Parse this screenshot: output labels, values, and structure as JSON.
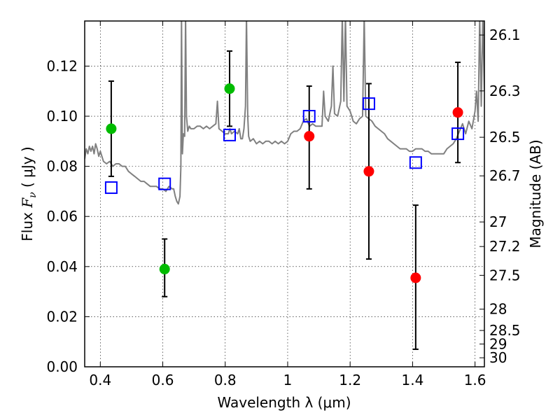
{
  "chart_data": {
    "type": "scatter",
    "title": "",
    "xlabel": "Wavelength  λ (μm)",
    "ylabel_left_prefix": "Flux  ",
    "ylabel_left_var": "F",
    "ylabel_left_sub": "ν",
    "ylabel_left_unit": "  ( μJy )",
    "ylabel_right": "Magnitude (AB)",
    "xlim": [
      0.35,
      1.63
    ],
    "ylim": [
      0.0,
      0.138
    ],
    "grid": true,
    "x_ticks": [
      0.4,
      0.6,
      0.8,
      1.0,
      1.2,
      1.4,
      1.6
    ],
    "x_tick_labels": [
      "0.4",
      "0.6",
      "0.8",
      "1",
      "1.2",
      "1.4",
      "1.6"
    ],
    "y_ticks": [
      0.0,
      0.02,
      0.04,
      0.06,
      0.08,
      0.1,
      0.12
    ],
    "y_tick_labels": [
      "0.00",
      "0.02",
      "0.04",
      "0.06",
      "0.08",
      "0.10",
      "0.12"
    ],
    "right_axis_ticks": [
      {
        "label": "26.1",
        "flux": 0.1324
      },
      {
        "label": "26.3",
        "flux": 0.1101
      },
      {
        "label": "26.5",
        "flux": 0.0916
      },
      {
        "label": "26.7",
        "flux": 0.0762
      },
      {
        "label": "27",
        "flux": 0.0578
      },
      {
        "label": "27.2",
        "flux": 0.048
      },
      {
        "label": "27.5",
        "flux": 0.0365
      },
      {
        "label": "28",
        "flux": 0.023
      },
      {
        "label": "28.5",
        "flux": 0.0145
      },
      {
        "label": "29",
        "flux": 0.0091
      },
      {
        "label": "30",
        "flux": 0.0036
      }
    ],
    "colors": {
      "spectrum": "#808080",
      "green_points": "#00bb00",
      "red_points": "#ff0000",
      "model_squares": "#0000ff",
      "errorbars": "#000000"
    },
    "series": [
      {
        "type": "scatter-errorbar",
        "marker": "green-circle",
        "points": [
          {
            "x": 0.435,
            "y": 0.095,
            "ylo": 0.076,
            "yhi": 0.114
          },
          {
            "x": 0.606,
            "y": 0.039,
            "ylo": 0.028,
            "yhi": 0.051
          },
          {
            "x": 0.814,
            "y": 0.111,
            "ylo": 0.096,
            "yhi": 0.126
          }
        ]
      },
      {
        "type": "scatter-errorbar",
        "marker": "red-circle",
        "points": [
          {
            "x": 1.069,
            "y": 0.092,
            "ylo": 0.071,
            "yhi": 0.112
          },
          {
            "x": 1.26,
            "y": 0.078,
            "ylo": 0.043,
            "yhi": 0.113
          },
          {
            "x": 1.41,
            "y": 0.0355,
            "ylo": 0.007,
            "yhi": 0.0645
          },
          {
            "x": 1.545,
            "y": 0.1015,
            "ylo": 0.0815,
            "yhi": 0.1215
          }
        ]
      },
      {
        "type": "scatter",
        "marker": "blue-open-square",
        "points": [
          {
            "x": 0.435,
            "y": 0.0715
          },
          {
            "x": 0.606,
            "y": 0.073
          },
          {
            "x": 0.814,
            "y": 0.0925
          },
          {
            "x": 1.069,
            "y": 0.1
          },
          {
            "x": 1.26,
            "y": 0.105
          },
          {
            "x": 1.41,
            "y": 0.0815
          },
          {
            "x": 1.545,
            "y": 0.093
          }
        ]
      },
      {
        "type": "line",
        "marker": "grey-spectrum",
        "points": [
          [
            0.35,
            0.083
          ],
          [
            0.355,
            0.087
          ],
          [
            0.36,
            0.085
          ],
          [
            0.365,
            0.088
          ],
          [
            0.37,
            0.086
          ],
          [
            0.375,
            0.088
          ],
          [
            0.38,
            0.085
          ],
          [
            0.385,
            0.089
          ],
          [
            0.39,
            0.087
          ],
          [
            0.395,
            0.084
          ],
          [
            0.4,
            0.086
          ],
          [
            0.41,
            0.082
          ],
          [
            0.42,
            0.081
          ],
          [
            0.43,
            0.082
          ],
          [
            0.44,
            0.08
          ],
          [
            0.45,
            0.081
          ],
          [
            0.46,
            0.081
          ],
          [
            0.47,
            0.08
          ],
          [
            0.48,
            0.08
          ],
          [
            0.49,
            0.078
          ],
          [
            0.5,
            0.077
          ],
          [
            0.51,
            0.076
          ],
          [
            0.52,
            0.075
          ],
          [
            0.53,
            0.074
          ],
          [
            0.54,
            0.074
          ],
          [
            0.55,
            0.073
          ],
          [
            0.56,
            0.072
          ],
          [
            0.57,
            0.072
          ],
          [
            0.58,
            0.072
          ],
          [
            0.59,
            0.071
          ],
          [
            0.6,
            0.071
          ],
          [
            0.61,
            0.07
          ],
          [
            0.62,
            0.072
          ],
          [
            0.63,
            0.071
          ],
          [
            0.635,
            0.071
          ],
          [
            0.64,
            0.068
          ],
          [
            0.645,
            0.066
          ],
          [
            0.65,
            0.065
          ],
          [
            0.655,
            0.068
          ],
          [
            0.658,
            0.08
          ],
          [
            0.66,
            0.14
          ],
          [
            0.663,
            0.085
          ],
          [
            0.666,
            0.093
          ],
          [
            0.67,
            0.092
          ],
          [
            0.673,
            0.14
          ],
          [
            0.676,
            0.1
          ],
          [
            0.68,
            0.094
          ],
          [
            0.685,
            0.096
          ],
          [
            0.69,
            0.095
          ],
          [
            0.7,
            0.095
          ],
          [
            0.71,
            0.096
          ],
          [
            0.72,
            0.096
          ],
          [
            0.73,
            0.095
          ],
          [
            0.74,
            0.096
          ],
          [
            0.75,
            0.095
          ],
          [
            0.76,
            0.096
          ],
          [
            0.77,
            0.097
          ],
          [
            0.775,
            0.106
          ],
          [
            0.78,
            0.095
          ],
          [
            0.79,
            0.094
          ],
          [
            0.8,
            0.093
          ],
          [
            0.81,
            0.093
          ],
          [
            0.815,
            0.095
          ],
          [
            0.82,
            0.093
          ],
          [
            0.83,
            0.094
          ],
          [
            0.84,
            0.093
          ],
          [
            0.845,
            0.095
          ],
          [
            0.85,
            0.091
          ],
          [
            0.855,
            0.091
          ],
          [
            0.86,
            0.095
          ],
          [
            0.865,
            0.104
          ],
          [
            0.868,
            0.14
          ],
          [
            0.872,
            0.1
          ],
          [
            0.875,
            0.092
          ],
          [
            0.88,
            0.09
          ],
          [
            0.89,
            0.091
          ],
          [
            0.9,
            0.089
          ],
          [
            0.91,
            0.09
          ],
          [
            0.92,
            0.089
          ],
          [
            0.93,
            0.09
          ],
          [
            0.94,
            0.09
          ],
          [
            0.95,
            0.089
          ],
          [
            0.96,
            0.09
          ],
          [
            0.97,
            0.089
          ],
          [
            0.98,
            0.09
          ],
          [
            0.99,
            0.089
          ],
          [
            1.0,
            0.09
          ],
          [
            1.01,
            0.093
          ],
          [
            1.02,
            0.094
          ],
          [
            1.03,
            0.094
          ],
          [
            1.04,
            0.095
          ],
          [
            1.05,
            0.098
          ],
          [
            1.06,
            0.099
          ],
          [
            1.07,
            0.096
          ],
          [
            1.08,
            0.097
          ],
          [
            1.09,
            0.096
          ],
          [
            1.1,
            0.096
          ],
          [
            1.11,
            0.096
          ],
          [
            1.115,
            0.11
          ],
          [
            1.12,
            0.1
          ],
          [
            1.13,
            0.098
          ],
          [
            1.14,
            0.104
          ],
          [
            1.145,
            0.12
          ],
          [
            1.15,
            0.101
          ],
          [
            1.16,
            0.1
          ],
          [
            1.17,
            0.106
          ],
          [
            1.175,
            0.14
          ],
          [
            1.18,
            0.106
          ],
          [
            1.185,
            0.14
          ],
          [
            1.19,
            0.104
          ],
          [
            1.2,
            0.102
          ],
          [
            1.21,
            0.098
          ],
          [
            1.22,
            0.097
          ],
          [
            1.23,
            0.099
          ],
          [
            1.24,
            0.1
          ],
          [
            1.245,
            0.14
          ],
          [
            1.25,
            0.1
          ],
          [
            1.26,
            0.099
          ],
          [
            1.27,
            0.098
          ],
          [
            1.28,
            0.096
          ],
          [
            1.29,
            0.095
          ],
          [
            1.3,
            0.094
          ],
          [
            1.31,
            0.093
          ],
          [
            1.32,
            0.091
          ],
          [
            1.33,
            0.09
          ],
          [
            1.34,
            0.089
          ],
          [
            1.35,
            0.088
          ],
          [
            1.36,
            0.087
          ],
          [
            1.37,
            0.087
          ],
          [
            1.38,
            0.087
          ],
          [
            1.39,
            0.086
          ],
          [
            1.4,
            0.086
          ],
          [
            1.41,
            0.087
          ],
          [
            1.42,
            0.087
          ],
          [
            1.43,
            0.087
          ],
          [
            1.44,
            0.086
          ],
          [
            1.45,
            0.086
          ],
          [
            1.46,
            0.085
          ],
          [
            1.47,
            0.085
          ],
          [
            1.48,
            0.085
          ],
          [
            1.49,
            0.085
          ],
          [
            1.5,
            0.085
          ],
          [
            1.51,
            0.087
          ],
          [
            1.52,
            0.088
          ],
          [
            1.53,
            0.089
          ],
          [
            1.54,
            0.091
          ],
          [
            1.55,
            0.094
          ],
          [
            1.56,
            0.097
          ],
          [
            1.57,
            0.093
          ],
          [
            1.58,
            0.098
          ],
          [
            1.59,
            0.095
          ],
          [
            1.6,
            0.102
          ],
          [
            1.605,
            0.11
          ],
          [
            1.61,
            0.098
          ],
          [
            1.615,
            0.14
          ],
          [
            1.62,
            0.104
          ],
          [
            1.625,
            0.14
          ],
          [
            1.63,
            0.11
          ]
        ]
      }
    ]
  }
}
